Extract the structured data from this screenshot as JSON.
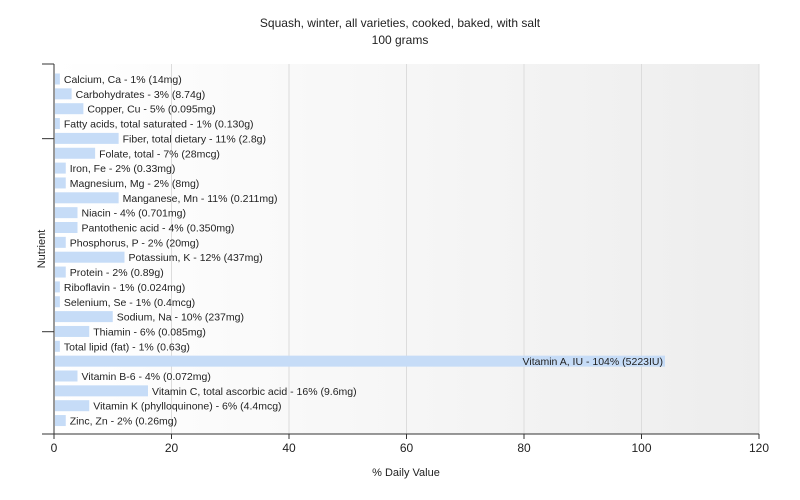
{
  "chart_data": {
    "type": "bar",
    "orientation": "horizontal",
    "title": "Squash, winter, all varieties, cooked, baked, with salt",
    "subtitle": "100 grams",
    "xlabel": "% Daily Value",
    "ylabel": "Nutrient",
    "xlim": [
      0,
      120
    ],
    "xticks": [
      0,
      20,
      40,
      60,
      80,
      100,
      120
    ],
    "grid": true,
    "bar_color": "#c6dcf7",
    "categories": [
      "Calcium, Ca",
      "Carbohydrates",
      "Copper, Cu",
      "Fatty acids, total saturated",
      "Fiber, total dietary",
      "Folate, total",
      "Iron, Fe",
      "Magnesium, Mg",
      "Manganese, Mn",
      "Niacin",
      "Pantothenic acid",
      "Phosphorus, P",
      "Potassium, K",
      "Protein",
      "Riboflavin",
      "Selenium, Se",
      "Sodium, Na",
      "Thiamin",
      "Total lipid (fat)",
      "Vitamin A, IU",
      "Vitamin B-6",
      "Vitamin C, total ascorbic acid",
      "Vitamin K (phylloquinone)",
      "Zinc, Zn"
    ],
    "values": [
      1,
      3,
      5,
      1,
      11,
      7,
      2,
      2,
      11,
      4,
      4,
      2,
      12,
      2,
      1,
      1,
      10,
      6,
      1,
      104,
      4,
      16,
      6,
      2
    ],
    "labels": [
      "Calcium, Ca - 1% (14mg)",
      "Carbohydrates - 3% (8.74g)",
      "Copper, Cu - 5% (0.095mg)",
      "Fatty acids, total saturated - 1% (0.130g)",
      "Fiber, total dietary - 11% (2.8g)",
      "Folate, total - 7% (28mcg)",
      "Iron, Fe - 2% (0.33mg)",
      "Magnesium, Mg - 2% (8mg)",
      "Manganese, Mn - 11% (0.211mg)",
      "Niacin - 4% (0.701mg)",
      "Pantothenic acid - 4% (0.350mg)",
      "Phosphorus, P - 2% (20mg)",
      "Potassium, K - 12% (437mg)",
      "Protein - 2% (0.89g)",
      "Riboflavin - 1% (0.024mg)",
      "Selenium, Se - 1% (0.4mcg)",
      "Sodium, Na - 10% (237mg)",
      "Thiamin - 6% (0.085mg)",
      "Total lipid (fat) - 1% (0.63g)",
      "Vitamin A, IU - 104% (5223IU)",
      "Vitamin B-6 - 4% (0.072mg)",
      "Vitamin C, total ascorbic acid - 16% (9.6mg)",
      "Vitamin K (phylloquinone) - 6% (4.4mcg)",
      "Zinc, Zn - 2% (0.26mg)"
    ]
  }
}
